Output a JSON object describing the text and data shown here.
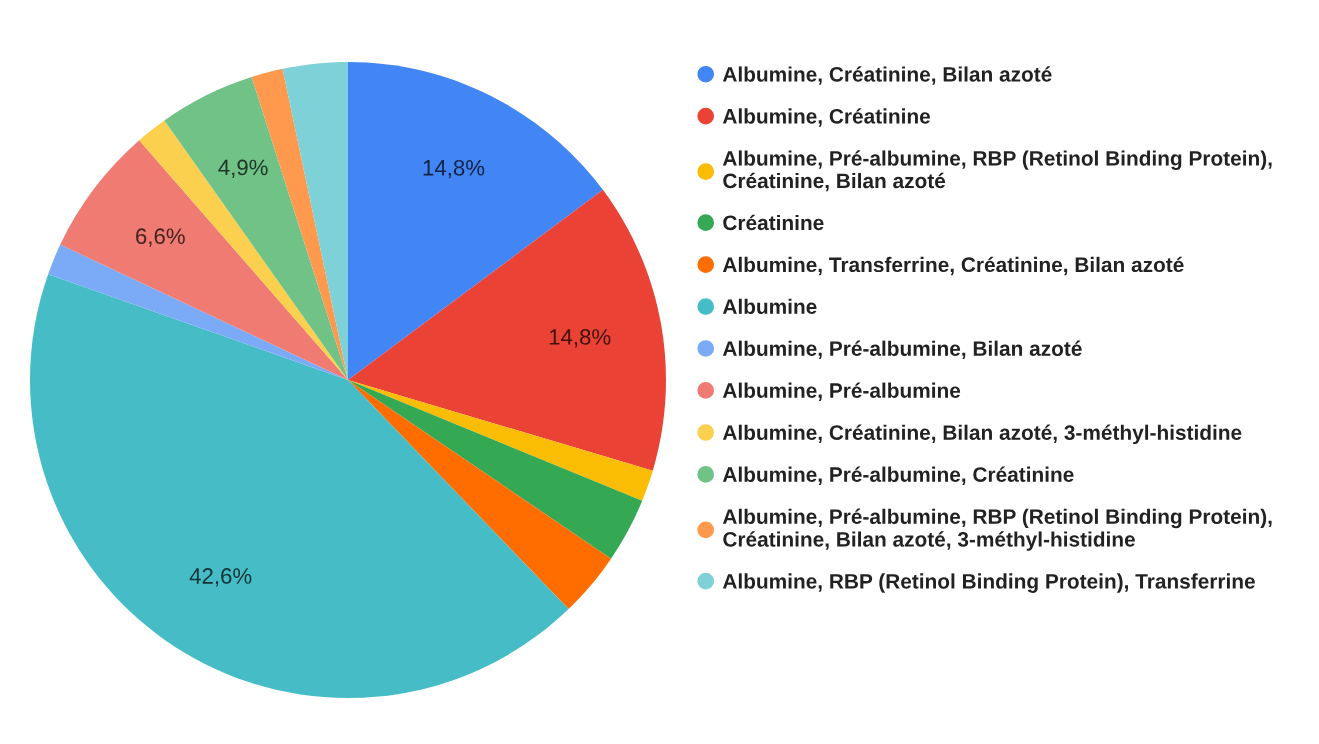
{
  "chart_data": {
    "type": "pie",
    "categories": [
      "Albumine, Créatinine, Bilan azoté",
      "Albumine, Créatinine",
      "Albumine, Pré-albumine, RBP (Retinol Binding Protein),\nCréatinine, Bilan azoté",
      "Créatinine",
      "Albumine, Transferrine, Créatinine, Bilan azoté",
      "Albumine",
      "Albumine, Pré-albumine, Bilan azoté",
      "Albumine, Pré-albumine",
      "Albumine, Créatinine, Bilan azoté, 3-méthyl-histidine",
      "Albumine, Pré-albumine, Créatinine",
      "Albumine, Pré-albumine, RBP (Retinol Binding Protein),\nCréatinine, Bilan azoté, 3-méthyl-histidine",
      "Albumine, RBP (Retinol Binding Protein), Transferrine"
    ],
    "values": [
      14.8,
      14.8,
      1.6,
      3.3,
      3.3,
      42.6,
      1.6,
      6.6,
      1.6,
      4.9,
      1.6,
      3.3
    ],
    "colors": [
      "#4285f4",
      "#ea4335",
      "#fbbc04",
      "#34a853",
      "#ff6d01",
      "#46bdc6",
      "#7baaf7",
      "#f07b72",
      "#fcd04f",
      "#71c287",
      "#ff994d",
      "#7ed1d7"
    ],
    "value_labels": [
      "14,8%",
      "14,8%",
      null,
      null,
      null,
      "42,6%",
      null,
      "6,6%",
      null,
      "4,9%",
      null,
      null
    ],
    "legend": "right"
  }
}
